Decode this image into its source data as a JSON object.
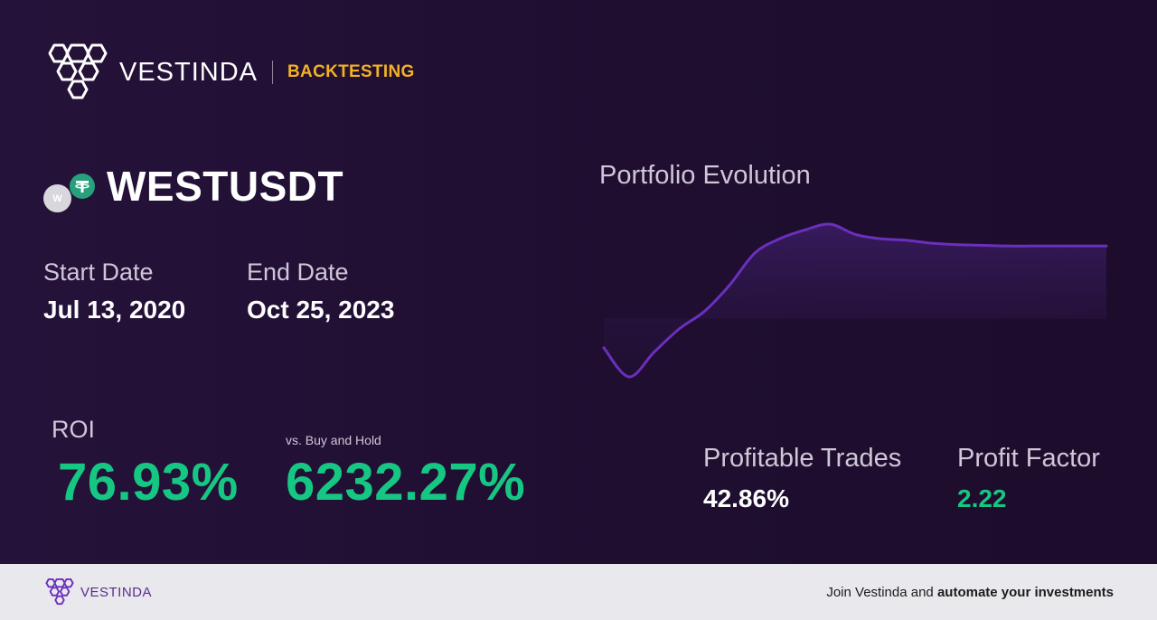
{
  "brand": {
    "name": "VESTINDA",
    "section": "BACKTESTING",
    "logo_icon": "hexagon-cluster-icon",
    "accent_color": "#f3b223"
  },
  "pair": {
    "symbol": "WESTUSDT",
    "base_coin_letter": "W",
    "base_icon": "west-coin-icon",
    "quote_icon": "tether-icon",
    "quote_color": "#26a17b"
  },
  "dates": {
    "start_label": "Start Date",
    "start_value": "Jul 13, 2020",
    "end_label": "End Date",
    "end_value": "Oct 25, 2023"
  },
  "roi": {
    "label": "ROI",
    "value": "76.93%",
    "color": "#16c784"
  },
  "buy_and_hold": {
    "label": "vs. Buy and Hold",
    "value": "6232.27%"
  },
  "chart": {
    "title": "Portfolio Evolution",
    "line_color": "#6a2fbd"
  },
  "metrics": {
    "profitable_trades_label": "Profitable Trades",
    "profitable_trades_value": "42.86%",
    "profit_factor_label": "Profit Factor",
    "profit_factor_value": "2.22",
    "profit_factor_color": "#16c784"
  },
  "footer": {
    "brand_name": "VESTINDA",
    "cta_prefix": "Join Vestinda and ",
    "cta_bold": "automate your investments"
  },
  "chart_data": {
    "type": "area",
    "x": [
      0,
      5,
      10,
      15,
      20,
      25,
      30,
      35,
      40,
      45,
      50,
      55,
      60,
      65,
      70,
      75,
      80,
      85,
      90,
      95,
      100
    ],
    "values": [
      0.25,
      0.05,
      0.22,
      0.38,
      0.5,
      0.68,
      0.9,
      1.0,
      1.06,
      1.1,
      1.03,
      1.0,
      0.99,
      0.97,
      0.96,
      0.955,
      0.95,
      0.95,
      0.95,
      0.95,
      0.95
    ],
    "title": "Portfolio Evolution",
    "xlabel": "",
    "ylabel": "",
    "ylim": [
      0,
      1.15
    ],
    "grid": false
  }
}
